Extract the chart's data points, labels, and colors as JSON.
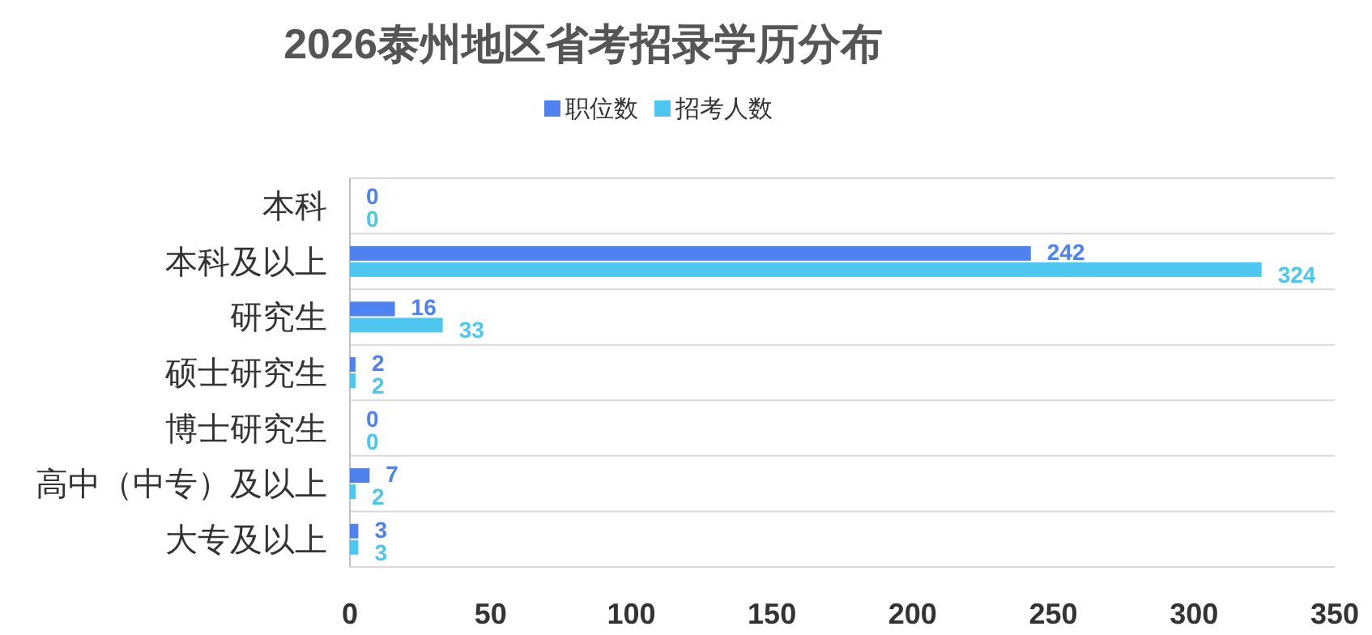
{
  "chart_data": {
    "type": "bar",
    "orientation": "horizontal",
    "title": "2026泰州地区省考招录学历分布",
    "categories": [
      "本科",
      "本科及以上",
      "研究生",
      "硕士研究生",
      "博士研究生",
      "高中（中专）及以上",
      "大专及以上"
    ],
    "series": [
      {
        "name": "职位数",
        "color": "#4f81ef",
        "values": [
          0,
          242,
          16,
          2,
          0,
          7,
          3
        ]
      },
      {
        "name": "招考人数",
        "color": "#4dc6f0",
        "values": [
          0,
          324,
          33,
          2,
          0,
          2,
          3
        ]
      }
    ],
    "xlim": [
      0,
      350
    ],
    "xticks": [
      0,
      50,
      100,
      150,
      200,
      250,
      300,
      350
    ],
    "grid": "y",
    "legend": "top",
    "data_labels": true
  }
}
